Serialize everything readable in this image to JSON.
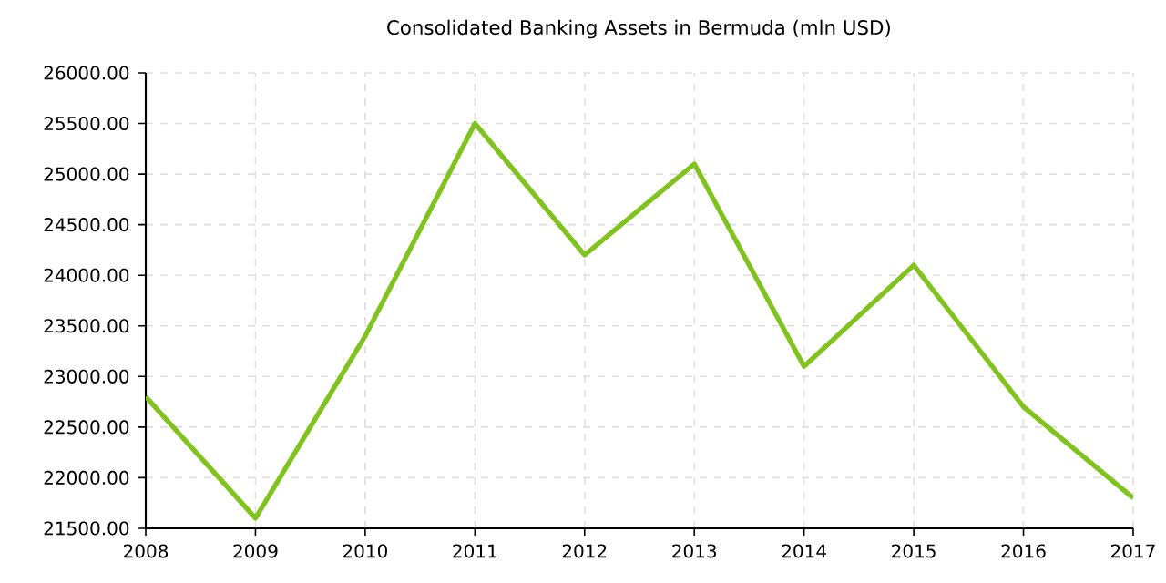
{
  "chart_data": {
    "type": "line",
    "title": "Consolidated Banking Assets in Bermuda (mln USD)",
    "x": [
      2008,
      2009,
      2010,
      2011,
      2012,
      2013,
      2014,
      2015,
      2016,
      2017
    ],
    "values": [
      22800,
      21600,
      23400,
      25500,
      24200,
      25100,
      23100,
      24100,
      22700,
      21800
    ],
    "color": "#80c31c",
    "line_style": "solid",
    "grid": true,
    "xlim": [
      2008,
      2017
    ],
    "xticks": [
      2008,
      2009,
      2010,
      2011,
      2012,
      2013,
      2014,
      2015,
      2016,
      2017
    ],
    "ylim": [
      21500,
      26000
    ],
    "yticks": [
      {
        "value": 21500,
        "label": "21500.00"
      },
      {
        "value": 22000,
        "label": "22000.00"
      },
      {
        "value": 22500,
        "label": "22500.00"
      },
      {
        "value": 23000,
        "label": "23000.00"
      },
      {
        "value": 23500,
        "label": "23500.00"
      },
      {
        "value": 24000,
        "label": "24000.00"
      },
      {
        "value": 24500,
        "label": "24500.00"
      },
      {
        "value": 25000,
        "label": "25000.00"
      },
      {
        "value": 25500,
        "label": "25500.00"
      },
      {
        "value": 26000,
        "label": "26000.00"
      }
    ]
  }
}
